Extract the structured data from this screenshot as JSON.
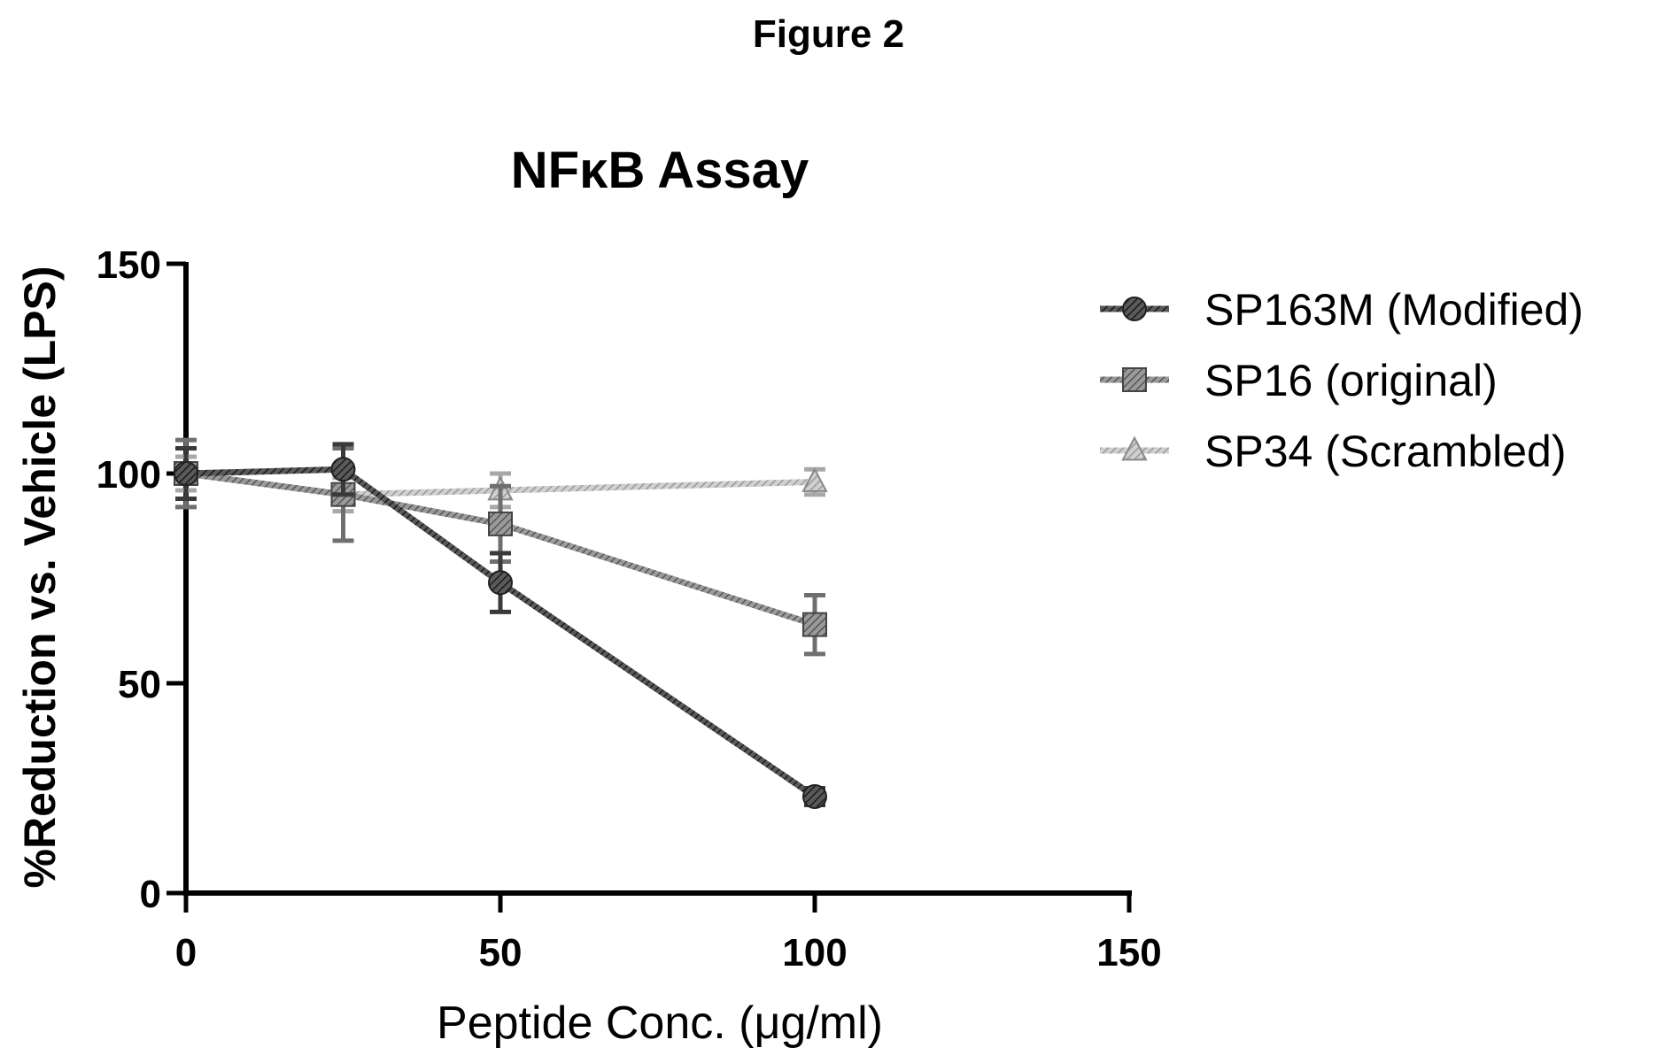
{
  "figure_label": "Figure 2",
  "chart_data": {
    "type": "line",
    "title": "NFκB Assay",
    "xlabel": "Peptide Conc. (μg/ml)",
    "ylabel": "%Reduction vs. Vehicle (LPS)",
    "xlim": [
      0,
      150
    ],
    "ylim": [
      0,
      150
    ],
    "xticks": [
      0,
      50,
      100,
      150
    ],
    "yticks": [
      0,
      50,
      100,
      150
    ],
    "grid": false,
    "legend_position": "right",
    "series": [
      {
        "name": "SP163M (Modified)",
        "marker": "circle",
        "color": "#3a3a3a",
        "x": [
          0,
          25,
          50,
          100
        ],
        "y": [
          100,
          101,
          74,
          23
        ],
        "err": [
          6,
          6,
          7,
          2
        ]
      },
      {
        "name": "SP16 (original)",
        "marker": "square",
        "color": "#6f6f6f",
        "x": [
          0,
          25,
          50,
          100
        ],
        "y": [
          100,
          95,
          88,
          64
        ],
        "err": [
          8,
          11,
          9,
          7
        ]
      },
      {
        "name": "SP34 (Scrambled)",
        "marker": "triangle",
        "color": "#a8a8a8",
        "x": [
          0,
          25,
          50,
          100
        ],
        "y": [
          100,
          95,
          96,
          98
        ],
        "err": [
          4,
          4,
          4,
          3
        ]
      }
    ]
  }
}
